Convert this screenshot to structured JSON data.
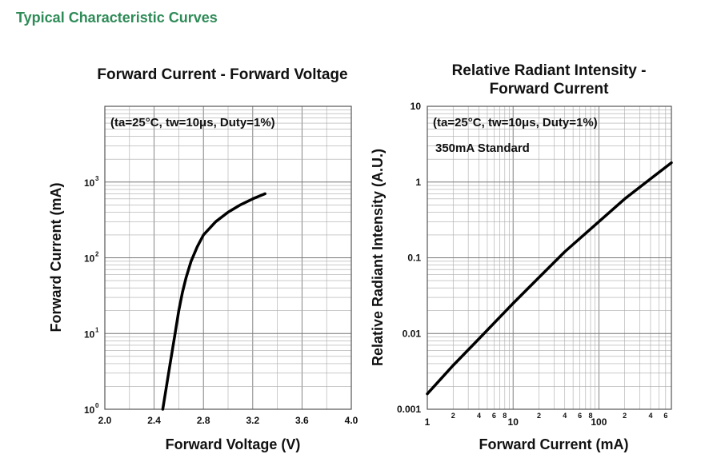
{
  "page": {
    "section_title": "Typical Characteristic Curves",
    "accent_color": "#2e8b57"
  },
  "chart_data": [
    {
      "type": "line",
      "title": "Forward Current - Forward Voltage",
      "xlabel": "Forward Voltage (V)",
      "ylabel": "Forward Current (mA)",
      "annotations": [
        "(ta=25°C, tw=10μs, Duty=1%)"
      ],
      "x_scale": "linear",
      "y_scale": "log",
      "xlim": [
        2.0,
        4.0
      ],
      "ylim": [
        1,
        10000
      ],
      "x_ticks": [
        "2.0",
        "2.4",
        "2.8",
        "3.2",
        "3.6",
        "4.0"
      ],
      "y_ticks": [
        {
          "base": "10",
          "exp": "0"
        },
        {
          "base": "10",
          "exp": "1"
        },
        {
          "base": "10",
          "exp": "2"
        },
        {
          "base": "10",
          "exp": "3"
        }
      ],
      "grid": true,
      "series": [
        {
          "x": [
            2.47,
            2.5,
            2.53,
            2.57,
            2.6,
            2.63,
            2.66,
            2.7,
            2.75,
            2.8,
            2.9,
            3.0,
            3.1,
            3.2,
            3.3
          ],
          "y": [
            1,
            2,
            4,
            10,
            20,
            35,
            55,
            90,
            140,
            200,
            300,
            400,
            500,
            600,
            700
          ]
        }
      ]
    },
    {
      "type": "line",
      "title_lines": [
        "Relative Radiant Intensity -",
        "Forward Current"
      ],
      "xlabel": "Forward Current (mA)",
      "ylabel": "Relative Radiant Intensity (A.U.)",
      "annotations": [
        "(ta=25°C, tw=10μs, Duty=1%)",
        "350mA Standard"
      ],
      "x_scale": "log",
      "y_scale": "log",
      "xlim": [
        1,
        700
      ],
      "ylim": [
        0.001,
        10
      ],
      "x_ticks_major": [
        "1",
        "10",
        "100"
      ],
      "x_ticks_minor": [
        "2",
        "4",
        "6",
        "8"
      ],
      "y_ticks": [
        "0.001",
        "0.01",
        "0.1",
        "1",
        "10"
      ],
      "grid": true,
      "series": [
        {
          "x": [
            1,
            2,
            4,
            10,
            20,
            40,
            100,
            200,
            400,
            700
          ],
          "y": [
            0.0016,
            0.0038,
            0.0085,
            0.025,
            0.055,
            0.12,
            0.3,
            0.6,
            1.1,
            1.8
          ]
        }
      ]
    }
  ]
}
